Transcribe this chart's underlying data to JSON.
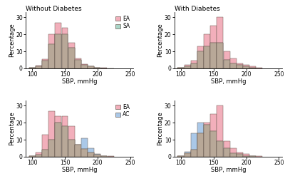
{
  "title_left": "Without Diabetes",
  "title_right": "With Diabetes",
  "xlabel": "SBP, mmHg",
  "ylabel": "Percentage",
  "xlim": [
    90,
    255
  ],
  "ylim": [
    0,
    33
  ],
  "xticks": [
    100,
    150,
    200,
    250
  ],
  "yticks": [
    0,
    10,
    20,
    30
  ],
  "bin_edges": [
    95,
    105,
    115,
    125,
    135,
    145,
    155,
    165,
    175,
    185,
    195,
    205,
    215,
    225
  ],
  "EA_color": "#f2afbb",
  "SA_color": "#aad6c8",
  "AC_color": "#aac8e8",
  "overlap_color": "#b8a898",
  "top_left_EA": [
    0.5,
    1.5,
    5.5,
    20.0,
    27.0,
    24.0,
    15.0,
    6.0,
    2.5,
    1.0,
    0.5,
    0.2,
    0.1
  ],
  "top_left_SA": [
    0.3,
    1.0,
    4.5,
    14.0,
    20.0,
    20.0,
    12.0,
    5.0,
    2.0,
    1.0,
    0.3,
    0.1,
    0.0
  ],
  "top_right_EA": [
    0.5,
    2.0,
    4.5,
    13.0,
    20.0,
    25.0,
    30.0,
    10.0,
    6.0,
    3.0,
    2.0,
    1.0,
    0.5
  ],
  "top_right_SA": [
    0.2,
    1.0,
    3.0,
    10.0,
    13.0,
    15.0,
    15.0,
    5.0,
    3.0,
    2.0,
    1.0,
    0.3,
    0.0
  ],
  "bot_left_EA": [
    0.5,
    2.5,
    13.0,
    27.0,
    24.0,
    24.0,
    18.0,
    7.0,
    4.5,
    2.5,
    1.0,
    0.5,
    0.2
  ],
  "bot_left_AC": [
    0.3,
    1.0,
    4.0,
    10.0,
    20.0,
    18.0,
    10.0,
    7.0,
    11.0,
    5.0,
    1.5,
    0.5,
    0.1
  ],
  "bot_right_EA": [
    0.5,
    2.0,
    4.0,
    14.0,
    20.0,
    25.0,
    30.0,
    9.0,
    5.0,
    2.5,
    1.5,
    0.5,
    0.2
  ],
  "bot_right_AC": [
    0.5,
    3.0,
    14.0,
    20.0,
    19.0,
    15.0,
    9.0,
    5.0,
    2.0,
    1.5,
    0.5,
    0.2,
    0.0
  ]
}
